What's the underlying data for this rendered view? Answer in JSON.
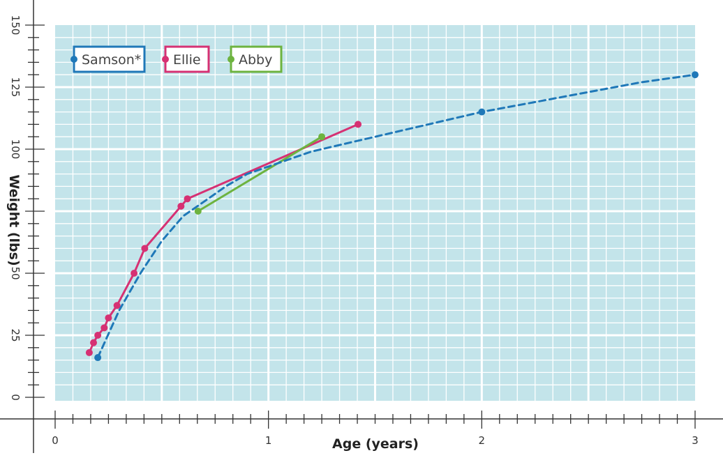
{
  "chart_data": {
    "type": "line",
    "title": "",
    "xlabel": "Age (years)",
    "ylabel": "Weight (lbs)",
    "xlim": [
      0,
      3
    ],
    "ylim": [
      0,
      150
    ],
    "x_ticks": [
      0,
      1,
      2,
      3
    ],
    "x_tick_labels": [
      "0",
      "1",
      "2",
      "3"
    ],
    "y_ticks": [
      0,
      25,
      50,
      75,
      100,
      125,
      150
    ],
    "y_tick_labels": [
      "0",
      "25",
      "50",
      "",
      "100",
      "125",
      "150"
    ],
    "grid": true,
    "legend_position": "top-left",
    "series": [
      {
        "name": "Samson*",
        "color": "#1f78b8",
        "style": "dashed",
        "markers": [
          [
            0.2,
            16
          ],
          [
            2,
            115
          ],
          [
            3,
            130
          ]
        ],
        "curve": [
          [
            0.2,
            16
          ],
          [
            0.3,
            35
          ],
          [
            0.4,
            50
          ],
          [
            0.5,
            63
          ],
          [
            0.6,
            73
          ],
          [
            0.7,
            79
          ],
          [
            0.8,
            85
          ],
          [
            0.9,
            90
          ],
          [
            1.0,
            93
          ],
          [
            1.1,
            96
          ],
          [
            1.2,
            99
          ],
          [
            1.3,
            101
          ],
          [
            1.5,
            105
          ],
          [
            1.75,
            110
          ],
          [
            2.0,
            115
          ],
          [
            2.25,
            119
          ],
          [
            2.5,
            123
          ],
          [
            2.75,
            127
          ],
          [
            3.0,
            130
          ]
        ]
      },
      {
        "name": "Ellie",
        "color": "#d63173",
        "style": "solid",
        "points": [
          [
            0.16,
            18
          ],
          [
            0.18,
            22
          ],
          [
            0.2,
            25
          ],
          [
            0.23,
            28
          ],
          [
            0.25,
            32
          ],
          [
            0.29,
            37
          ],
          [
            0.37,
            50
          ],
          [
            0.42,
            60
          ],
          [
            0.59,
            77
          ],
          [
            0.62,
            80
          ],
          [
            1.42,
            110
          ]
        ]
      },
      {
        "name": "Abby",
        "color": "#6db33f",
        "style": "solid",
        "points": [
          [
            0.67,
            75
          ],
          [
            1.25,
            105
          ]
        ]
      }
    ]
  }
}
